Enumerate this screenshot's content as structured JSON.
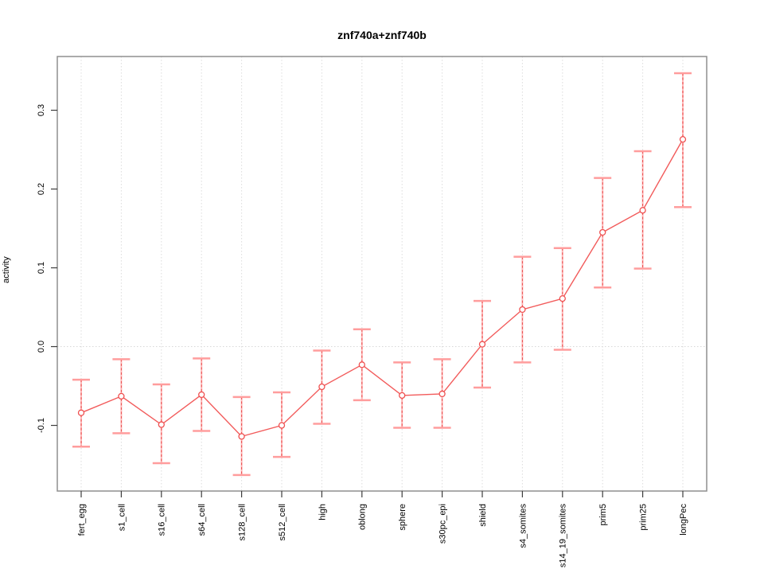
{
  "title": "znf740a+znf740b",
  "chart_data": {
    "type": "line",
    "title": "znf740a+znf740b",
    "xlabel": "",
    "ylabel": "activity",
    "legend_position": "none",
    "grid": {
      "vertical_dotted": true,
      "horizontal_zero_dotted": true
    },
    "categories": [
      "fert_egg",
      "s1_cell",
      "s16_cell",
      "s64_cell",
      "s128_cell",
      "s512_cell",
      "high",
      "oblong",
      "sphere",
      "s30pc_epi",
      "shield",
      "s4_somites",
      "s14_19_somites",
      "prim5",
      "prim25",
      "longPec"
    ],
    "series": [
      {
        "name": "activity",
        "values": [
          -0.084,
          -0.063,
          -0.099,
          -0.061,
          -0.114,
          -0.1,
          -0.051,
          -0.023,
          -0.062,
          -0.06,
          0.003,
          0.047,
          0.061,
          0.145,
          0.173,
          0.263
        ],
        "error_low": [
          -0.127,
          -0.11,
          -0.148,
          -0.107,
          -0.163,
          -0.14,
          -0.098,
          -0.068,
          -0.103,
          -0.103,
          -0.052,
          -0.02,
          -0.004,
          0.075,
          0.099,
          0.177
        ],
        "error_high": [
          -0.042,
          -0.016,
          -0.048,
          -0.015,
          -0.064,
          -0.058,
          -0.005,
          0.022,
          -0.02,
          -0.016,
          0.058,
          0.114,
          0.125,
          0.214,
          0.248,
          0.347
        ]
      }
    ],
    "yticks": [
      -0.1,
      0.0,
      0.1,
      0.2,
      0.3
    ],
    "ytick_labels": [
      "-0.1",
      "0.0",
      "0.1",
      "0.2",
      "0.3"
    ],
    "ylim": [
      -0.1833,
      0.3682
    ],
    "colors": {
      "series_line": "#f25b5b",
      "point_stroke": "#ef5050",
      "error_dash": "#e84a4a",
      "error_base": "#ffb9b9",
      "error_cap": "#ff9d9d",
      "grid": "#dcdcdc",
      "zero_line": "#d8d8d8",
      "frame": "#8f8f8f",
      "tick": "#3c3c3c",
      "text": "#000000"
    }
  }
}
